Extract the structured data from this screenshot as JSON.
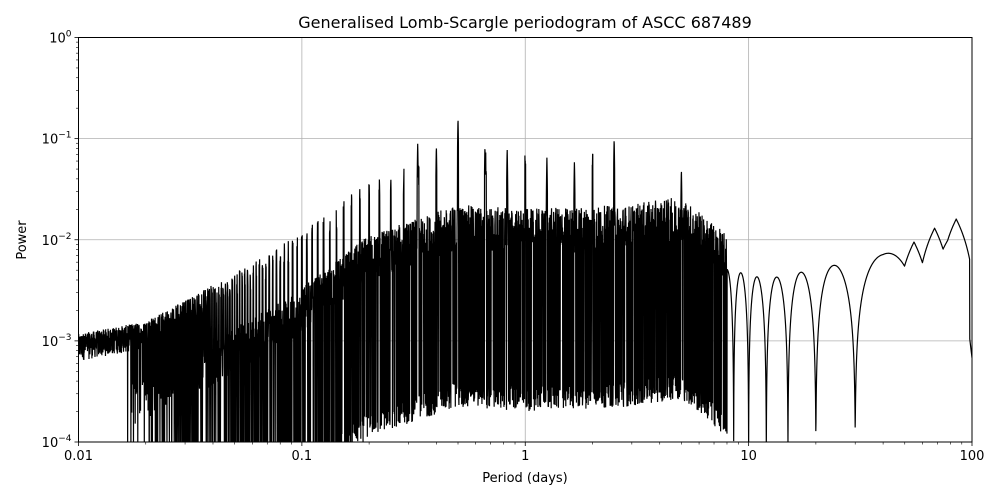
{
  "chart_data": {
    "type": "line",
    "title": "Generalised Lomb-Scargle periodogram of ASCC 687489",
    "xlabel": "Period (days)",
    "ylabel": "Power",
    "xscale": "log",
    "yscale": "log",
    "xlim": [
      0.01,
      100
    ],
    "ylim": [
      0.0001,
      1
    ],
    "grid": true,
    "x_ticks": [
      {
        "value": 0.01,
        "label": "0.01"
      },
      {
        "value": 0.1,
        "label": "0.1"
      },
      {
        "value": 1,
        "label": "1"
      },
      {
        "value": 10,
        "label": "10"
      },
      {
        "value": 100,
        "label": "100"
      }
    ],
    "y_ticks": [
      {
        "value": 0.0001,
        "base": "10",
        "exp": "−4"
      },
      {
        "value": 0.001,
        "base": "10",
        "exp": "−3"
      },
      {
        "value": 0.01,
        "base": "10",
        "exp": "−2"
      },
      {
        "value": 0.1,
        "base": "10",
        "exp": "−1"
      },
      {
        "value": 1,
        "base": "10",
        "exp": "0"
      }
    ],
    "line_color": "#000000",
    "grid_color": "#b0b0b0",
    "notable_peaks": [
      {
        "period": 0.5,
        "power": 0.16
      },
      {
        "period": 2.5,
        "power": 0.1
      },
      {
        "period": 0.33,
        "power": 0.09
      },
      {
        "period": 0.4,
        "power": 0.085
      },
      {
        "period": 0.66,
        "power": 0.085
      },
      {
        "period": 0.83,
        "power": 0.08
      },
      {
        "period": 1.25,
        "power": 0.065
      },
      {
        "period": 1.66,
        "power": 0.06
      },
      {
        "period": 5.0,
        "power": 0.05
      },
      {
        "period": 85,
        "power": 0.016
      },
      {
        "period": 68,
        "power": 0.013
      },
      {
        "period": 55,
        "power": 0.0095
      }
    ],
    "envelope": [
      {
        "period": 0.01,
        "power": 0.00015
      },
      {
        "period": 0.02,
        "power": 0.0002
      },
      {
        "period": 0.05,
        "power": 0.0006
      },
      {
        "period": 0.1,
        "power": 0.0015
      },
      {
        "period": 0.2,
        "power": 0.005
      },
      {
        "period": 0.5,
        "power": 0.01
      },
      {
        "period": 1,
        "power": 0.009
      },
      {
        "period": 3,
        "power": 0.01
      },
      {
        "period": 5,
        "power": 0.012
      },
      {
        "period": 8,
        "power": 0.005
      },
      {
        "period": 12,
        "power": 0.004
      },
      {
        "period": 20,
        "power": 0.005
      },
      {
        "period": 40,
        "power": 0.007
      },
      {
        "period": 85,
        "power": 0.016
      },
      {
        "period": 100,
        "power": 0.0007
      }
    ]
  }
}
